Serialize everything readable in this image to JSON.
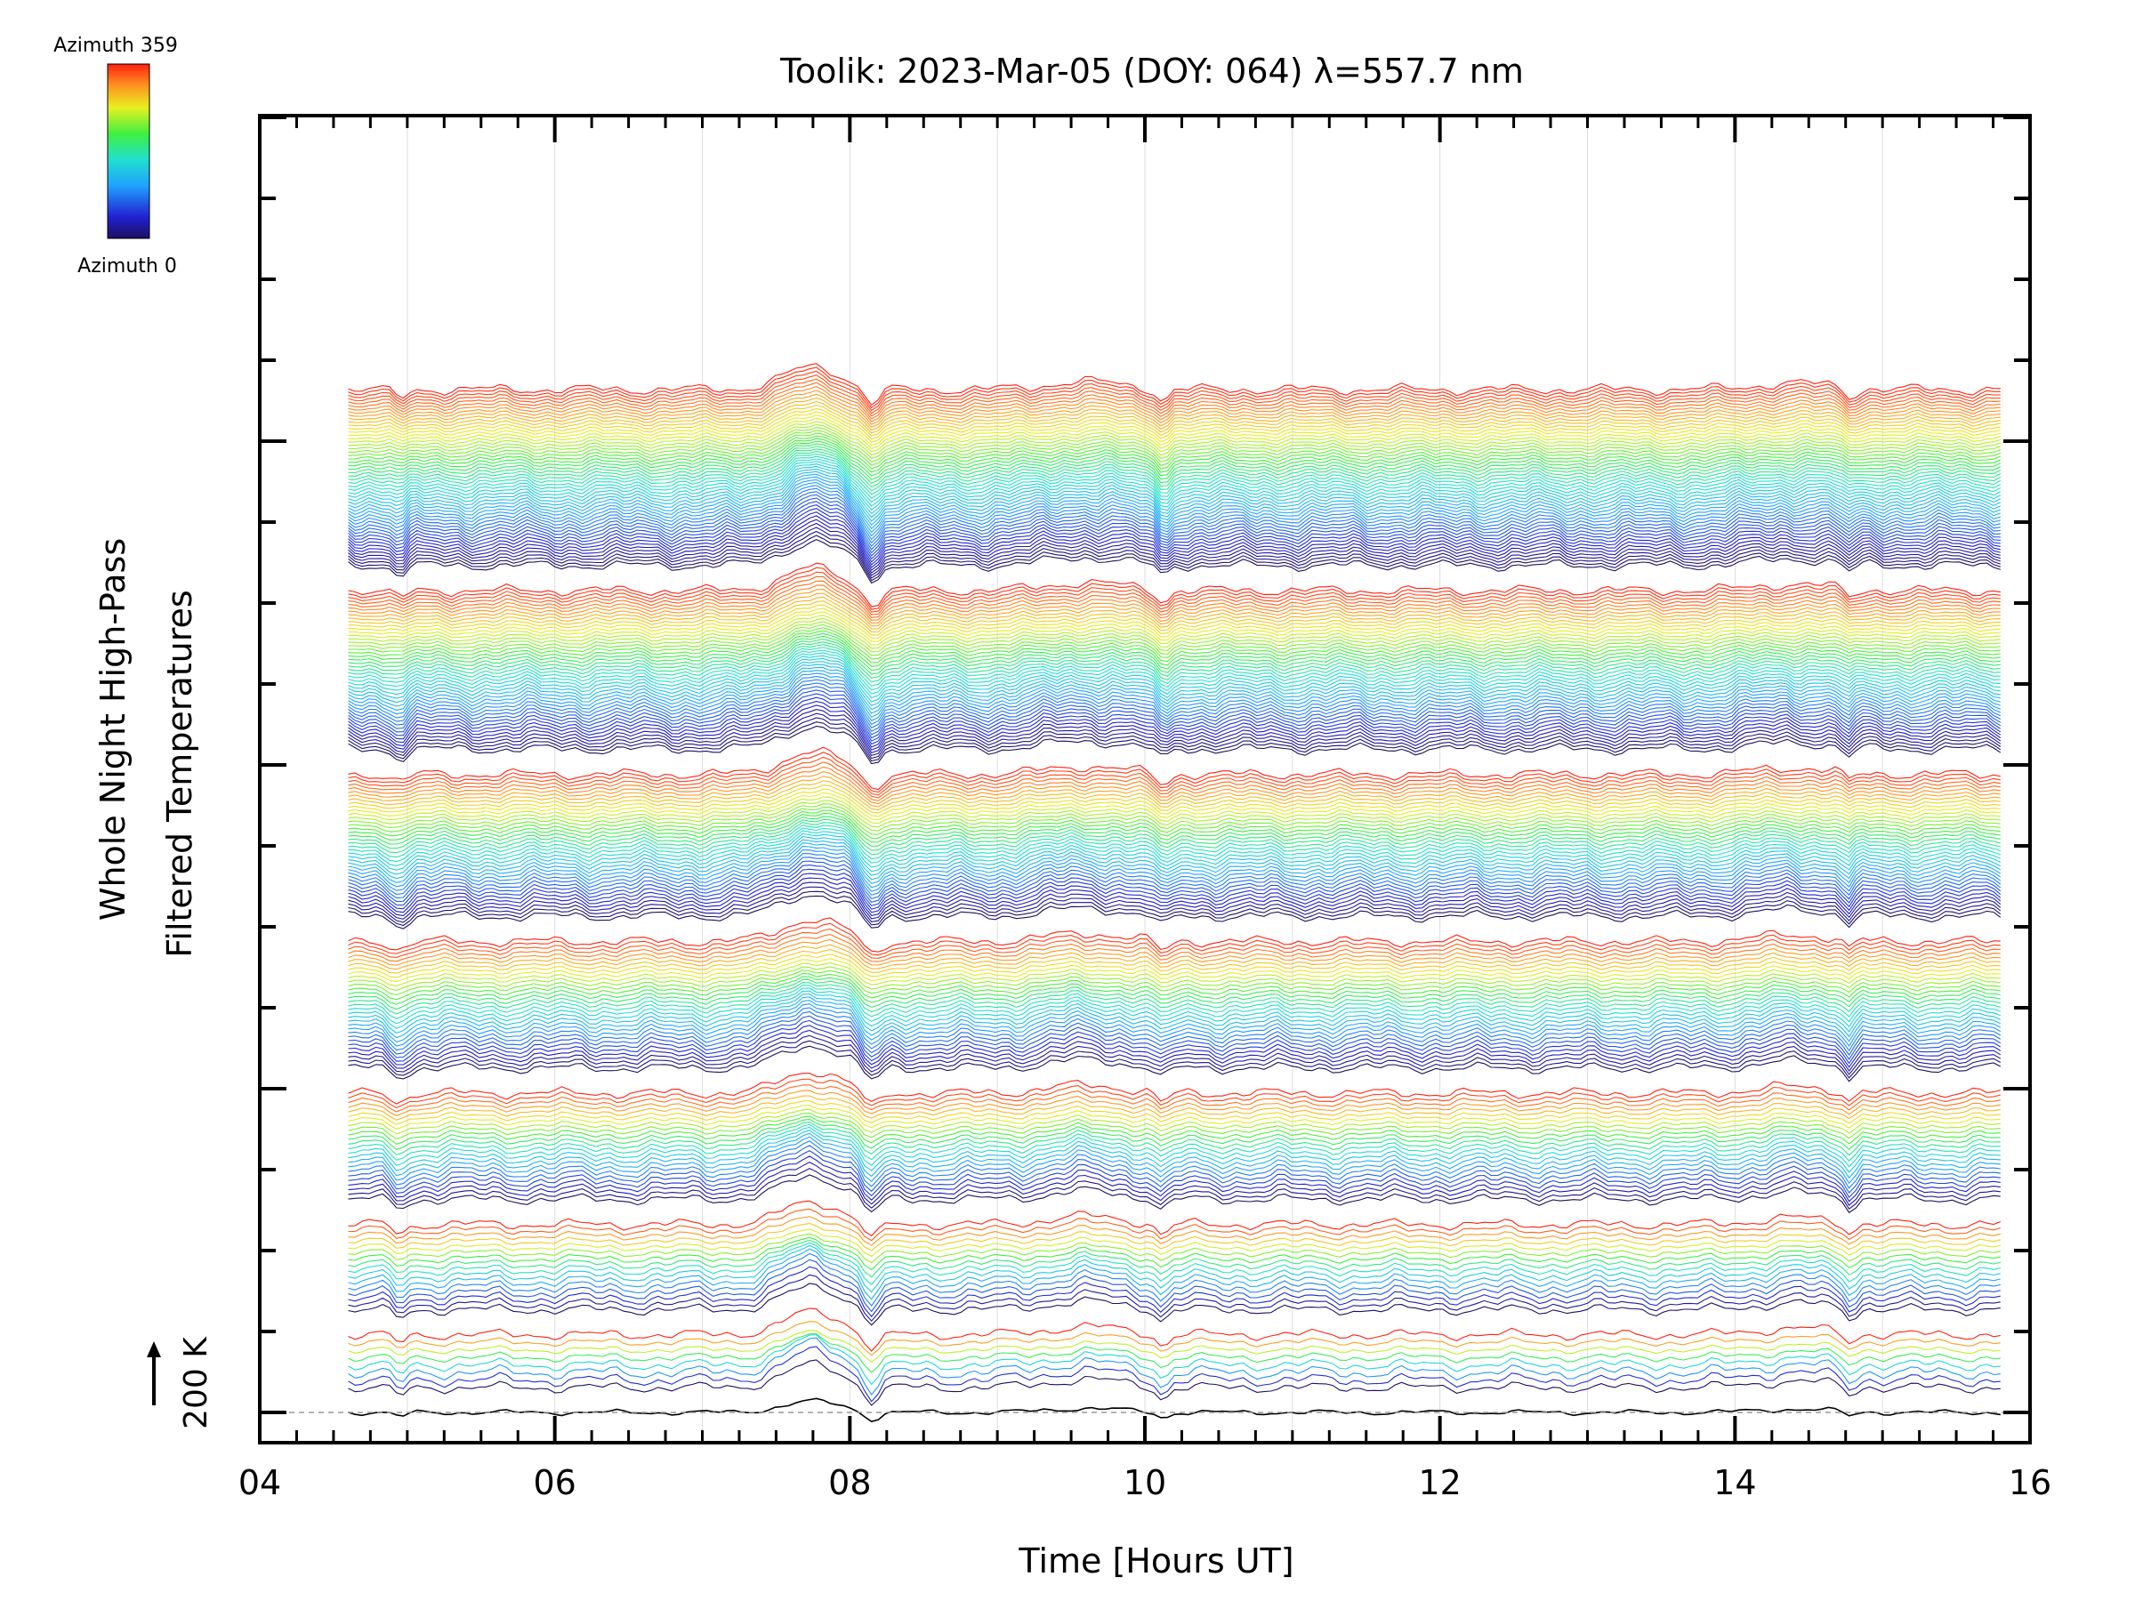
{
  "chart_data": {
    "type": "line",
    "title": "Toolik: 2023-Mar-05 (DOY: 064) λ=557.7 nm",
    "xlabel": "Time [Hours UT]",
    "ylabel_line1": "Whole Night High-Pass",
    "ylabel_line2": "Filtered Temperatures",
    "x_ticks": [
      "04",
      "06",
      "08",
      "10",
      "12",
      "14",
      "16"
    ],
    "x_tick_values": [
      4,
      6,
      8,
      10,
      12,
      14,
      16
    ],
    "xlim": [
      4,
      16
    ],
    "x_data_range": [
      4.6,
      15.8
    ],
    "scale_bar_label": "200 K",
    "scale_bar_value_K": 200,
    "colorbar": {
      "top_label": "Azimuth 359",
      "bottom_label": "Azimuth 0",
      "range": [
        0,
        359
      ],
      "colormap": "rainbow"
    },
    "stacked_traces_per_ring": [
      1,
      8,
      16,
      24,
      32,
      40,
      48,
      56
    ],
    "note_events_hours_ut": [
      5.0,
      7.8,
      8.1,
      10.1,
      11.4,
      12.1,
      13.3,
      14.8
    ]
  },
  "colors": {
    "axis": "#000000",
    "baseline_dash": "#999999",
    "grid": "#dddddd"
  }
}
